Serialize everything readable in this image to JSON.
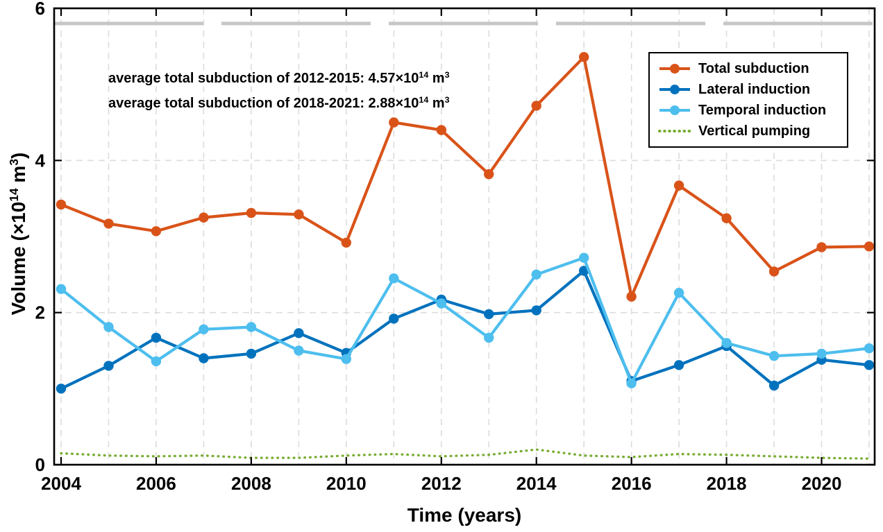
{
  "figure": {
    "xlabel": "Time (years)",
    "ylabel": {
      "pre": "Volume (×10",
      "sup1": "14",
      "mid": " m",
      "sup2": "3",
      "post": ")"
    },
    "annotations": [
      {
        "pre": "average total subduction of 2012-2015: 4.57×10",
        "sup1": "14",
        "mid": " m",
        "sup2": "3"
      },
      {
        "pre": "average total subduction of 2018-2021: 2.88×10",
        "sup1": "14",
        "mid": " m",
        "sup2": "3"
      }
    ]
  },
  "chart_data": {
    "type": "line",
    "title": "",
    "xlabel": "Time (years)",
    "ylabel": "Volume (×10^14 m^3)",
    "x": [
      2004,
      2005,
      2006,
      2007,
      2008,
      2009,
      2010,
      2011,
      2012,
      2013,
      2014,
      2015,
      2016,
      2017,
      2018,
      2019,
      2020,
      2021
    ],
    "xticks": [
      2004,
      2006,
      2008,
      2010,
      2012,
      2014,
      2016,
      2018,
      2020
    ],
    "yticks": [
      0,
      2,
      4,
      6
    ],
    "ylim": [
      0,
      6
    ],
    "xlim": [
      2003.85,
      2021.15
    ],
    "grid": {
      "color": "#DCDCDC",
      "vertical_every_year": true,
      "y_lines": [
        2,
        4
      ]
    },
    "reference_line": {
      "y": 5.8,
      "color": "#C7C7C7",
      "style": "dashed"
    },
    "legend_position": "top-right",
    "series": [
      {
        "name": "Total subduction",
        "color": "#D95319",
        "marker": "circle",
        "style": "solid",
        "values": [
          3.42,
          3.17,
          3.07,
          3.25,
          3.31,
          3.29,
          2.92,
          4.5,
          4.4,
          3.82,
          4.72,
          5.36,
          2.21,
          3.67,
          3.24,
          2.54,
          2.86,
          2.87
        ]
      },
      {
        "name": "Lateral induction",
        "color": "#0072BD",
        "marker": "circle",
        "style": "solid",
        "values": [
          1.0,
          1.3,
          1.67,
          1.4,
          1.46,
          1.73,
          1.47,
          1.92,
          2.17,
          1.98,
          2.03,
          2.55,
          1.1,
          1.31,
          1.56,
          1.04,
          1.38,
          1.31
        ]
      },
      {
        "name": "Temporal induction",
        "color": "#4DBEEE",
        "marker": "circle",
        "style": "solid",
        "values": [
          2.31,
          1.81,
          1.36,
          1.78,
          1.81,
          1.5,
          1.39,
          2.45,
          2.12,
          1.67,
          2.5,
          2.72,
          1.07,
          2.26,
          1.6,
          1.43,
          1.46,
          1.53
        ]
      },
      {
        "name": "Vertical pumping",
        "color": "#77AC30",
        "marker": "none",
        "style": "dotted",
        "values": [
          0.15,
          0.12,
          0.11,
          0.12,
          0.09,
          0.09,
          0.12,
          0.14,
          0.11,
          0.13,
          0.2,
          0.12,
          0.1,
          0.14,
          0.13,
          0.11,
          0.09,
          0.08
        ]
      }
    ]
  }
}
